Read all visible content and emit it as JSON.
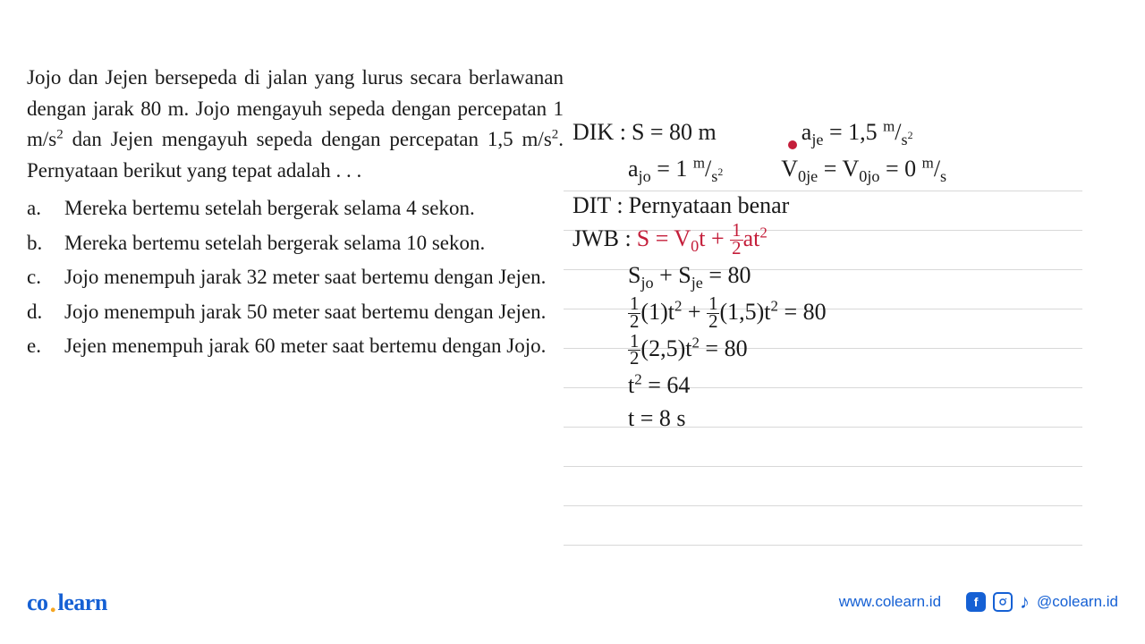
{
  "question": {
    "text_html": "Jojo dan Jejen bersepeda di jalan yang lurus secara berlawanan dengan jarak 80 m. Jojo mengayuh sepeda dengan percepatan 1 m/s<sup>2</sup> dan Jejen mengayuh sepeda dengan percepatan 1,5 m/s<sup>2</sup>. Pernyataan berikut yang tepat adalah . . .",
    "options": [
      {
        "letter": "a.",
        "text": "Mereka bertemu setelah bergerak selama 4 sekon."
      },
      {
        "letter": "b.",
        "text": "Mereka bertemu setelah bergerak selama 10 sekon."
      },
      {
        "letter": "c.",
        "text": "Jojo menempuh jarak 32 meter saat bertemu dengan Jejen."
      },
      {
        "letter": "d.",
        "text": "Jojo menempuh jarak 50 meter saat bertemu dengan Jejen."
      },
      {
        "letter": "e.",
        "text": "Jejen menempuh jarak 60 meter saat bertemu dengan Jojo."
      }
    ]
  },
  "work": {
    "dik_label": "DIK :",
    "dik_s": "S = 80 m",
    "dik_ajo": "a<sub>jo</sub> = 1 <sup>m</sup>/<sub>s<sup>2</sup></sub>",
    "dik_aje": "a<sub>je</sub> = 1,5 <sup>m</sup>/<sub>s<sup>2</sup></sub>",
    "dik_v0": "V<sub>0je</sub> = V<sub>0jo</sub> = 0 <sup>m</sup>/<sub>s</sub>",
    "dit_label": "DIT :",
    "dit_text": "Pernyataan benar",
    "jwb_label": "JWB :",
    "jwb_formula": "S = V<sub>0</sub>t + <span class='frac'><span class='frac-num'>1</span><span class='frac-den'>2</span></span>at<sup>2</sup>",
    "line1": "S<sub>jo</sub> + S<sub>je</sub> = 80",
    "line2": "<span class='frac'><span class='frac-num'>1</span><span class='frac-den'>2</span></span>(1)t<sup>2</sup> + <span class='frac'><span class='frac-num'>1</span><span class='frac-den'>2</span></span>(1,5)t<sup>2</sup> = 80",
    "line3": "<span class='frac'><span class='frac-num'>1</span><span class='frac-den'>2</span></span>(2,5)t<sup>2</sup> = 80",
    "line4": "t<sup>2</sup> = 64",
    "line5": "t = 8 s"
  },
  "footer": {
    "logo_co": "co",
    "logo_learn": "learn",
    "url": "www.colearn.id",
    "handle": "@colearn.id"
  },
  "colors": {
    "text": "#1a1a1a",
    "red": "#c41e3a",
    "blue": "#1560d4",
    "orange": "#f5a623",
    "line": "#d8d8d8",
    "bg": "#ffffff"
  }
}
